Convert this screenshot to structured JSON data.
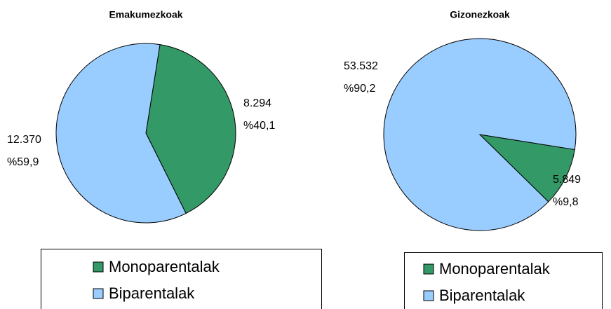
{
  "chart_data": [
    {
      "type": "pie",
      "title": "Emakumezkoak",
      "categories": [
        "Monoparentalak",
        "Biparentalak"
      ],
      "values": [
        8294,
        12370
      ],
      "value_labels": [
        "8.294",
        "12.370"
      ],
      "percent_labels": [
        "%40,1",
        "%59,9"
      ],
      "colors": [
        "#339966",
        "#99ccff"
      ]
    },
    {
      "type": "pie",
      "title": "Gizonezkoak",
      "categories": [
        "Monoparentalak",
        "Biparentalak"
      ],
      "values": [
        5849,
        53532
      ],
      "value_labels": [
        "5.849",
        "53.532"
      ],
      "percent_labels": [
        "%9,8",
        "%90,2"
      ],
      "colors": [
        "#339966",
        "#99ccff"
      ]
    }
  ]
}
